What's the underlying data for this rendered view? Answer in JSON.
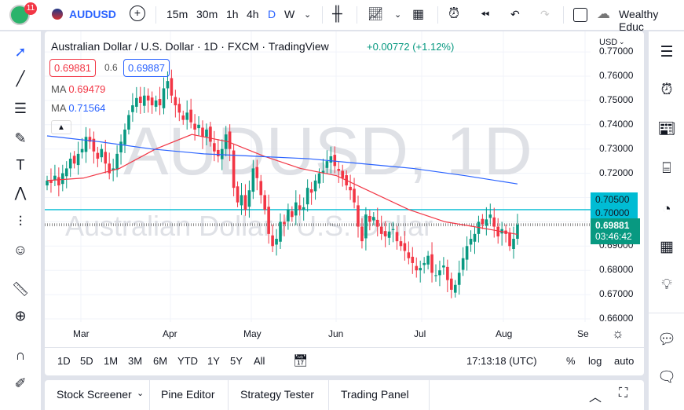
{
  "topbar": {
    "badge": "11",
    "symbol": "AUDUSD",
    "intervals": [
      "15m",
      "30m",
      "1h",
      "4h",
      "D",
      "W"
    ],
    "active_interval": "D",
    "layout_name": "Wealthy Educ"
  },
  "chart": {
    "title": "Australian Dollar / U.S. Dollar · 1D · FXCM · TradingView",
    "change": "+0.00772 (+1.12%)",
    "sell_price": "0.69881",
    "spread": "0.6",
    "buy_price": "0.69887",
    "ma_labels": [
      {
        "label": "MA",
        "value": "0.69479",
        "color": "#f23645"
      },
      {
        "label": "MA",
        "value": "0.71564",
        "color": "#2962ff"
      }
    ],
    "watermark_symbol": "AUDUSD, 1D",
    "watermark_name": "Australian Dollar / U.S. Dollar",
    "currency": "USD",
    "price_ticks": [
      "0.77000",
      "0.76000",
      "0.75000",
      "0.74000",
      "0.73000",
      "0.72000",
      "0.69000",
      "0.68000",
      "0.67000",
      "0.66000"
    ],
    "line_labels": [
      "0.70500",
      "0.70000"
    ],
    "current_price": "0.69881",
    "countdown": "03:46:42",
    "time_labels": [
      "Mar",
      "Apr",
      "May",
      "Jun",
      "Jul",
      "Aug",
      "Se"
    ],
    "colors": {
      "up": "#089981",
      "down": "#f23645",
      "ma_fast": "#f23645",
      "ma_slow": "#2962ff",
      "hline": "#00bcd4",
      "price_tag": "#089981"
    }
  },
  "chart_data": {
    "type": "candlestick",
    "ylim": [
      0.66,
      0.77
    ],
    "closes": [
      0.717,
      0.716,
      0.719,
      0.715,
      0.72,
      0.722,
      0.726,
      0.724,
      0.728,
      0.73,
      0.735,
      0.733,
      0.729,
      0.726,
      0.73,
      0.724,
      0.72,
      0.722,
      0.728,
      0.733,
      0.738,
      0.744,
      0.748,
      0.751,
      0.749,
      0.752,
      0.75,
      0.748,
      0.75,
      0.748,
      0.755,
      0.758,
      0.752,
      0.748,
      0.745,
      0.742,
      0.745,
      0.741,
      0.738,
      0.74,
      0.735,
      0.738,
      0.733,
      0.729,
      0.727,
      0.73,
      0.736,
      0.73,
      0.714,
      0.708,
      0.711,
      0.705,
      0.713,
      0.722,
      0.718,
      0.711,
      0.705,
      0.695,
      0.69,
      0.693,
      0.7,
      0.699,
      0.705,
      0.702,
      0.708,
      0.705,
      0.706,
      0.714,
      0.712,
      0.717,
      0.72,
      0.721,
      0.725,
      0.727,
      0.723,
      0.721,
      0.718,
      0.715,
      0.713,
      0.708,
      0.698,
      0.692,
      0.703,
      0.7,
      0.702,
      0.698,
      0.695,
      0.694,
      0.696,
      0.697,
      0.692,
      0.69,
      0.688,
      0.685,
      0.683,
      0.68,
      0.681,
      0.683,
      0.686,
      0.679,
      0.678,
      0.68,
      0.682,
      0.676,
      0.672,
      0.674,
      0.679,
      0.685,
      0.69,
      0.693,
      0.695,
      0.7,
      0.699,
      0.701,
      0.703,
      0.698,
      0.694,
      0.697,
      0.695,
      0.69,
      0.693,
      0.6988
    ],
    "ma_fast": [
      0.717,
      0.718,
      0.722,
      0.73,
      0.736,
      0.733,
      0.727,
      0.722,
      0.719,
      0.712,
      0.705,
      0.7,
      0.6975,
      0.6948
    ],
    "ma_slow": [
      0.7354,
      0.733,
      0.73,
      0.728,
      0.727,
      0.726,
      0.724,
      0.722,
      0.719,
      0.7156
    ],
    "hlines": [
      0.705,
      0.69881
    ]
  },
  "timeframes": {
    "ranges": [
      "1D",
      "5D",
      "1M",
      "3M",
      "6M",
      "YTD",
      "1Y",
      "5Y",
      "All"
    ],
    "clock": "17:13:18 (UTC)",
    "percent": "%",
    "log": "log",
    "auto": "auto"
  },
  "bottom": {
    "tabs": [
      "Stock Screener",
      "Pine Editor",
      "Strategy Tester",
      "Trading Panel"
    ]
  }
}
